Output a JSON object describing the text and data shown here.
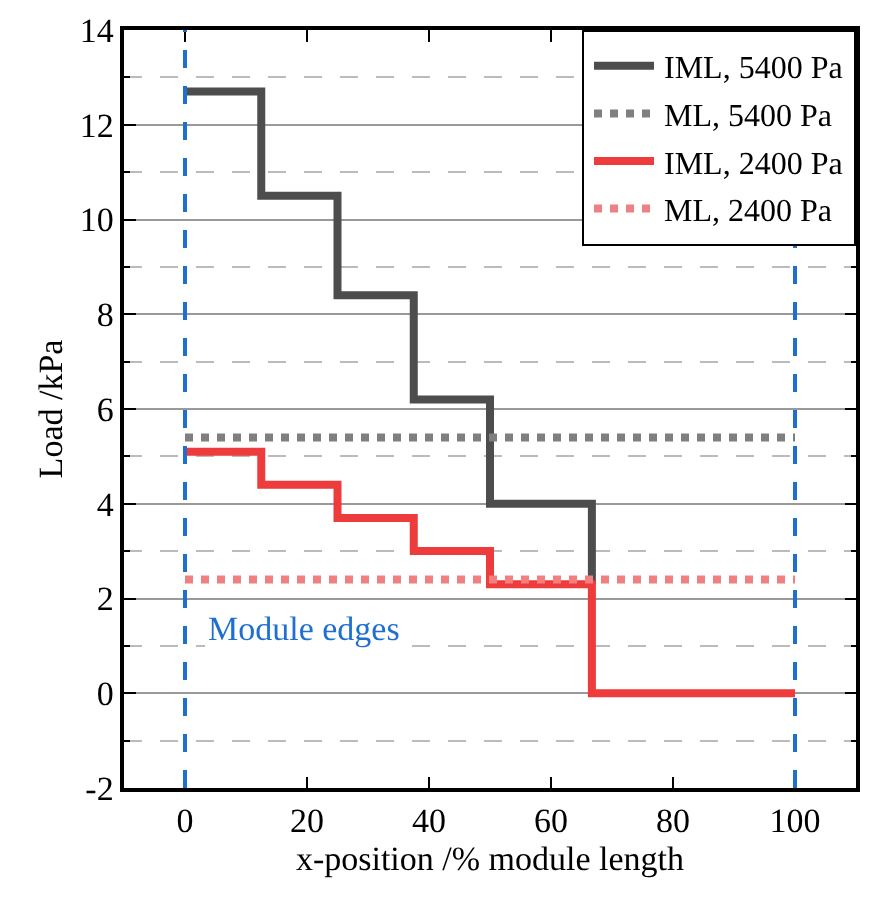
{
  "chart_data": {
    "type": "line",
    "xlabel": "x-position /% module length",
    "ylabel": "Load /kPa",
    "xlim": [
      -10,
      110
    ],
    "xticks": [
      0,
      20,
      40,
      60,
      80,
      100
    ],
    "ylim": [
      -2,
      14
    ],
    "yticks": [
      -2,
      0,
      2,
      4,
      6,
      8,
      10,
      12,
      14
    ],
    "grid": "y",
    "legend": "top right",
    "marker": "none",
    "series": [
      {
        "name": "IML, 5400 Pa",
        "color": "#4d4d4d",
        "line_style": "solid",
        "x": [
          0,
          12.5,
          12.5,
          25,
          25,
          37.5,
          37.5,
          50,
          50,
          66.7,
          66.7
        ],
        "values": [
          12.7,
          12.7,
          10.5,
          10.5,
          8.4,
          8.4,
          6.2,
          6.2,
          4.0,
          4.0,
          2.3
        ]
      },
      {
        "name": "ML, 5400 Pa",
        "color": "#7f7f7f",
        "line_style": "dotted",
        "x": [
          0,
          100
        ],
        "values": [
          5.4,
          5.4
        ]
      },
      {
        "name": "IML, 2400 Pa",
        "color": "#ee3b3b",
        "line_style": "solid",
        "x": [
          0,
          12.5,
          12.5,
          25,
          25,
          37.5,
          37.5,
          50,
          50,
          66.7,
          66.7,
          100
        ],
        "values": [
          5.1,
          5.1,
          4.4,
          4.4,
          3.7,
          3.7,
          3.0,
          3.0,
          2.3,
          2.3,
          0,
          0
        ]
      },
      {
        "name": "ML, 2400 Pa",
        "color": "#f08080",
        "line_style": "dotted",
        "x": [
          0,
          100
        ],
        "values": [
          2.4,
          2.4
        ]
      }
    ],
    "ref_lines": [
      {
        "axis": "x",
        "value": 0,
        "color": "#1f6fd1",
        "line_style": "dashed"
      },
      {
        "axis": "x",
        "value": 100,
        "color": "#1f6fd1",
        "line_style": "dashed"
      }
    ],
    "annotations": [
      "Module edges"
    ]
  }
}
